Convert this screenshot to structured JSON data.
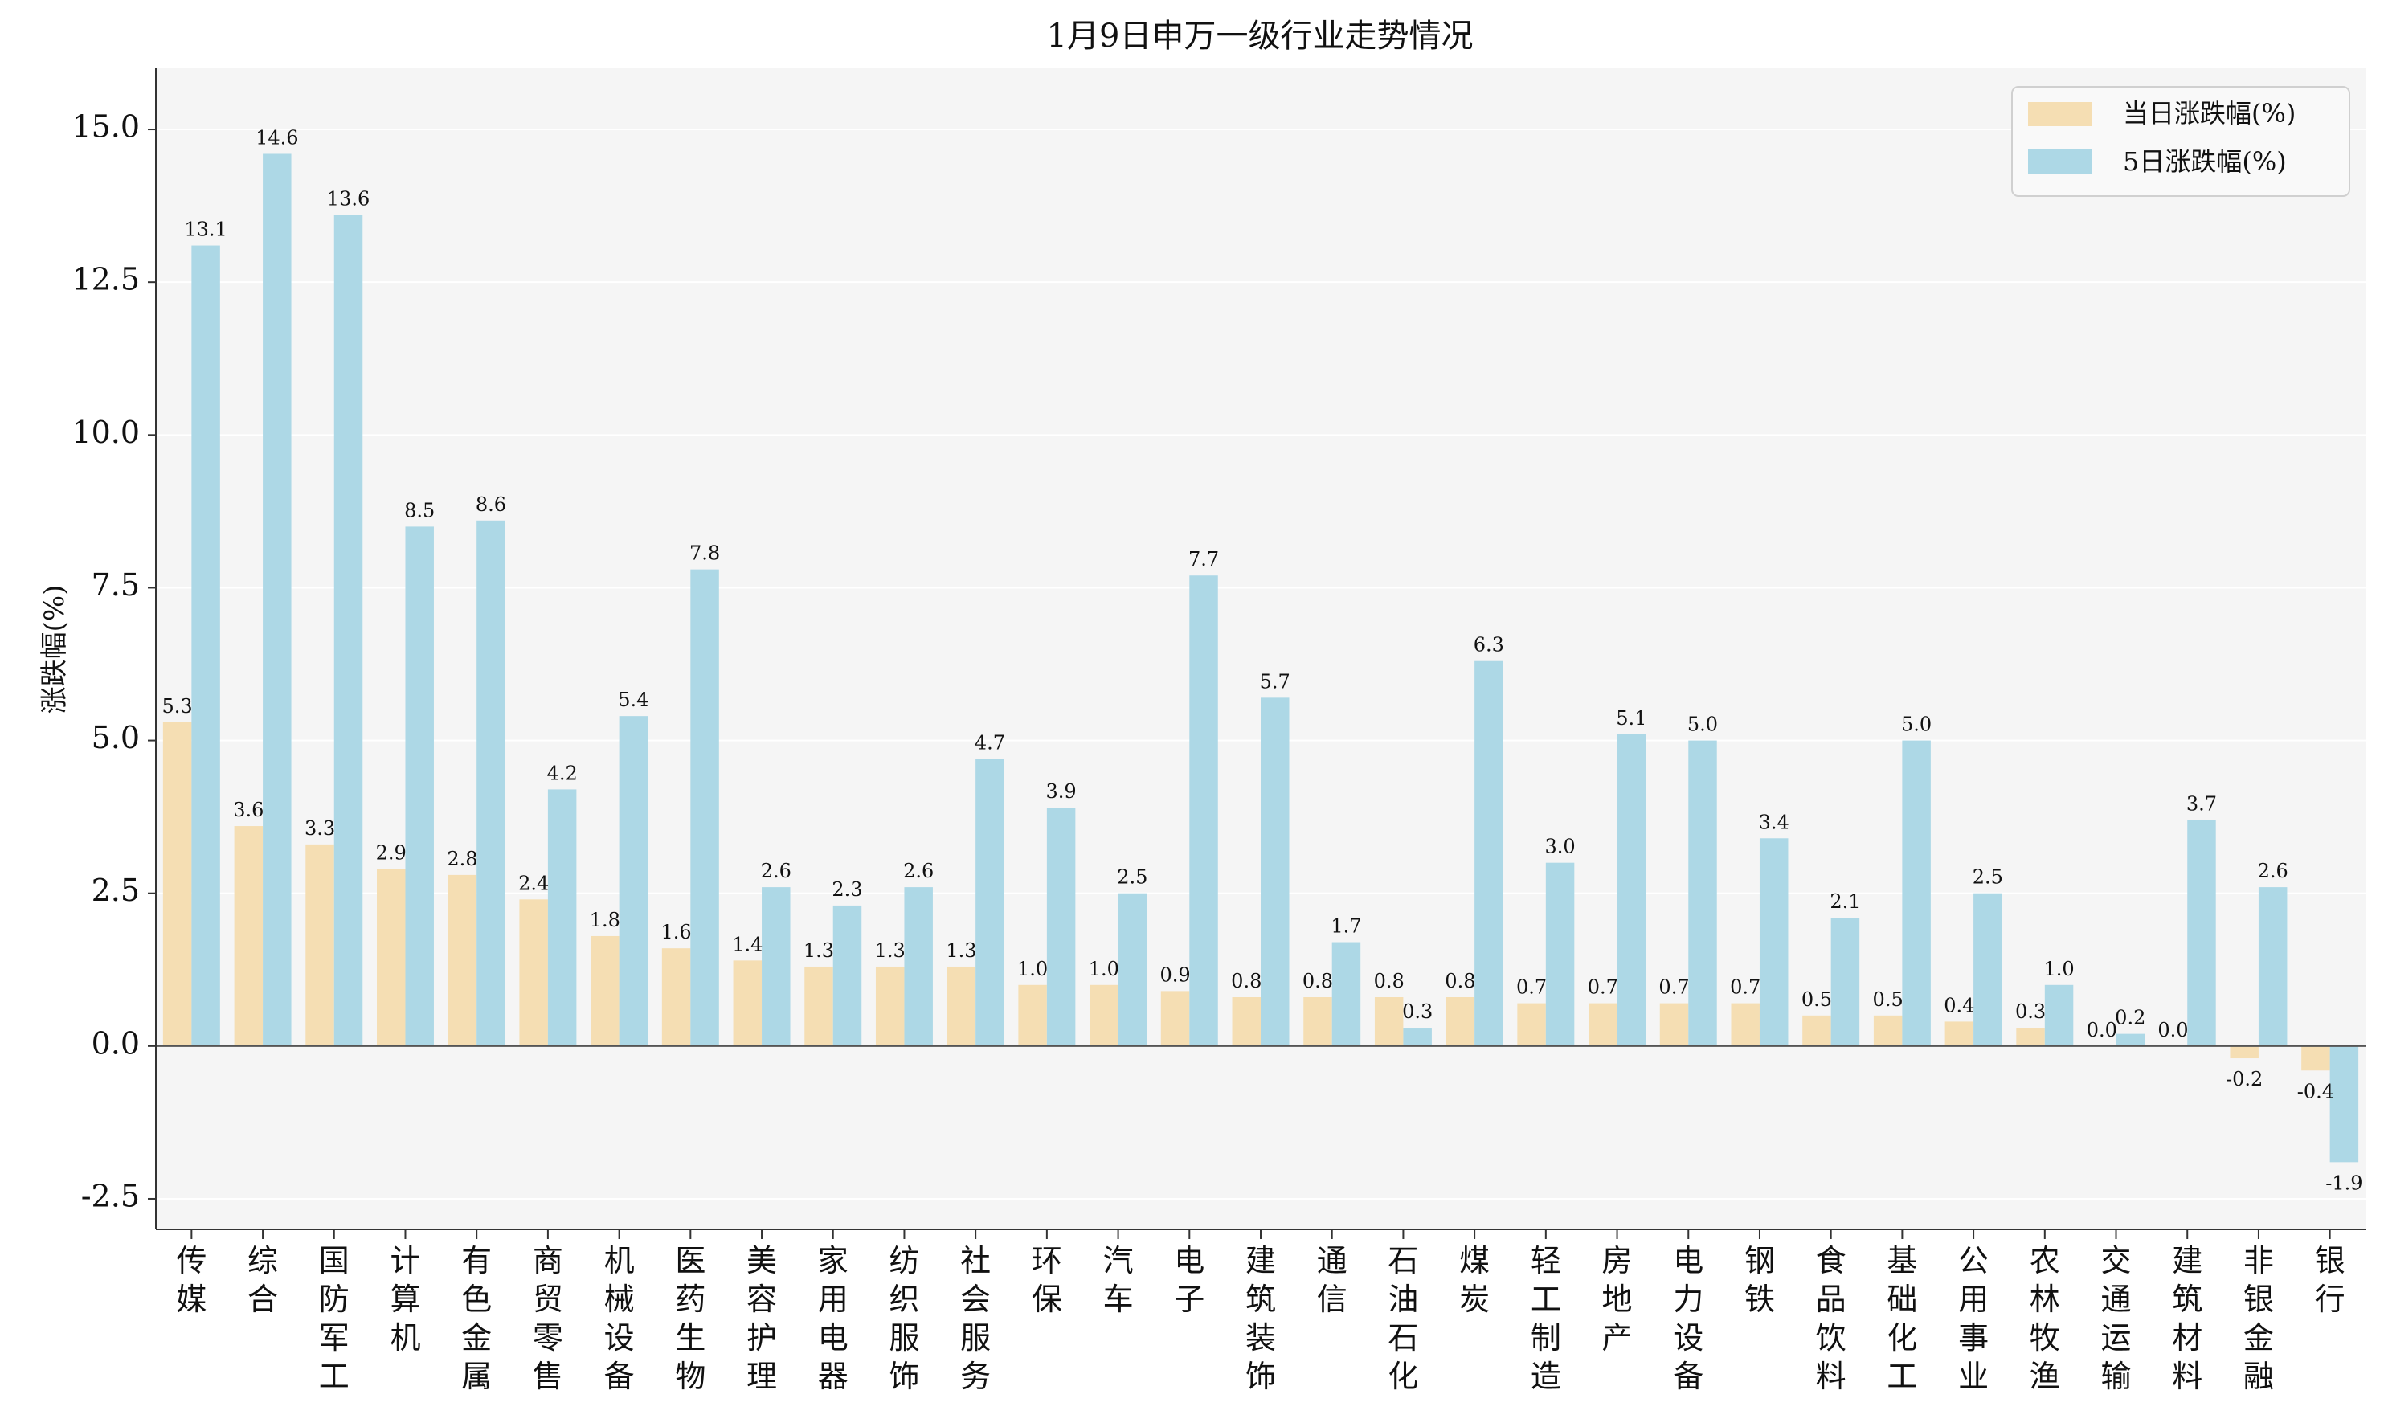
{
  "chart_data": {
    "type": "bar",
    "title": "1月9日申万一级行业走势情况",
    "ylabel": "涨跌幅(%)",
    "xlabel": "",
    "ylim": [
      -3.0,
      16.0
    ],
    "yticks": [
      -2.5,
      0.0,
      2.5,
      5.0,
      7.5,
      10.0,
      12.5,
      15.0
    ],
    "ytick_labels": [
      "-2.5",
      "0.0",
      "2.5",
      "5.0",
      "7.5",
      "10.0",
      "12.5",
      "15.0"
    ],
    "grid": true,
    "legend_position": "top-right",
    "categories": [
      "传媒",
      "综合",
      "国防军工",
      "计算机",
      "有色金属",
      "商贸零售",
      "机械设备",
      "医药生物",
      "美容护理",
      "家用电器",
      "纺织服饰",
      "社会服务",
      "环保",
      "汽车",
      "电子",
      "建筑装饰",
      "通信",
      "石油石化",
      "煤炭",
      "轻工制造",
      "房地产",
      "电力设备",
      "钢铁",
      "食品饮料",
      "基础化工",
      "公用事业",
      "农林牧渔",
      "交通运输",
      "建筑材料",
      "非银金融",
      "银行"
    ],
    "series": [
      {
        "name": "当日涨跌幅(%)",
        "color": "#f5deb3",
        "values": [
          5.3,
          3.6,
          3.3,
          2.9,
          2.8,
          2.4,
          1.8,
          1.6,
          1.4,
          1.3,
          1.3,
          1.3,
          1.0,
          1.0,
          0.9,
          0.8,
          0.8,
          0.8,
          0.8,
          0.7,
          0.7,
          0.7,
          0.7,
          0.5,
          0.5,
          0.4,
          0.3,
          0.0,
          0.0,
          -0.2,
          -0.4
        ],
        "labels": [
          "5.3",
          "3.6",
          "3.3",
          "2.9",
          "2.8",
          "2.4",
          "1.8",
          "1.6",
          "1.4",
          "1.3",
          "1.3",
          "1.3",
          "1.0",
          "1.0",
          "0.9",
          "0.8",
          "0.8",
          "0.8",
          "0.8",
          "0.7",
          "0.7",
          "0.7",
          "0.7",
          "0.5",
          "0.5",
          "0.4",
          "0.3",
          "0.0",
          "0.0",
          "-0.2",
          "-0.4"
        ]
      },
      {
        "name": "5日涨跌幅(%)",
        "color": "#add8e6",
        "values": [
          13.1,
          14.6,
          13.6,
          8.5,
          8.6,
          4.2,
          5.4,
          7.8,
          2.6,
          2.3,
          2.6,
          4.7,
          3.9,
          2.5,
          7.7,
          5.7,
          1.7,
          0.3,
          6.3,
          3.0,
          5.1,
          5.0,
          3.4,
          2.1,
          5.0,
          2.5,
          1.0,
          0.2,
          3.7,
          2.6,
          -1.9
        ],
        "labels": [
          "13.1",
          "14.6",
          "13.6",
          "8.5",
          "8.6",
          "4.2",
          "5.4",
          "7.8",
          "2.6",
          "2.3",
          "2.6",
          "4.7",
          "3.9",
          "2.5",
          "7.7",
          "5.7",
          "1.7",
          "0.3",
          "6.3",
          "3.0",
          "5.1",
          "5.0",
          "3.4",
          "2.1",
          "5.0",
          "2.5",
          "1.0",
          "0.2",
          "3.7",
          "2.6",
          "-1.9"
        ]
      }
    ]
  }
}
